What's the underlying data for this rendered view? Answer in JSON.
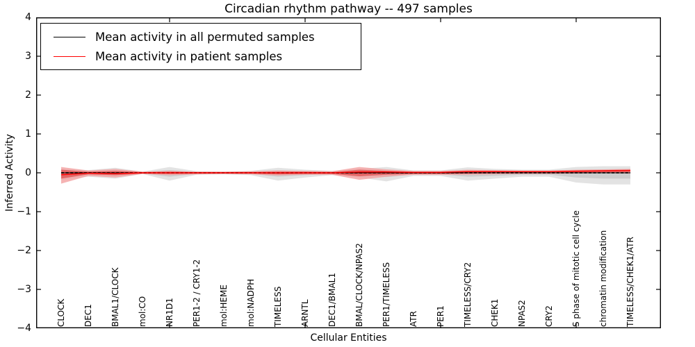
{
  "figure": {
    "title": "Circadian rhythm pathway -- 497 samples",
    "xlabel": "Cellular Entities",
    "ylabel": "Inferred Activity"
  },
  "legend": {
    "items": [
      {
        "label": "Mean activity in all permuted samples",
        "color": "#000000"
      },
      {
        "label": "Mean activity in patient samples",
        "color": "#ff0000"
      }
    ]
  },
  "chart_data": {
    "type": "line",
    "title": "Circadian rhythm pathway -- 497 samples",
    "xlabel": "Cellular Entities",
    "ylabel": "Inferred Activity",
    "ylim": [
      -4,
      4
    ],
    "yticks": [
      4,
      3,
      2,
      1,
      0,
      -1,
      -2,
      -3,
      -4
    ],
    "grid": false,
    "legend_position": "upper left",
    "x_major_tick_indices": [
      4,
      9,
      14,
      19
    ],
    "categories": [
      "CLOCK",
      "DEC1",
      "BMAL1/CLOCK",
      "mol:CO",
      "NR1D1",
      "PER1-2 / CRY1-2",
      "mol:HEME",
      "mol:NADPH",
      "TIMELESS",
      "ARNTL",
      "DEC1/BMAL1",
      "BMAL/CLOCK/NPAS2",
      "PER1/TIMELESS",
      "ATR",
      "PER1",
      "TIMELESS/CRY2",
      "CHEK1",
      "NPAS2",
      "CRY2",
      "S phase of mitotic cell cycle",
      "chromatin modification",
      "TIMELESS/CHEK1/ATR"
    ],
    "series": [
      {
        "name": "Mean activity in all permuted samples",
        "color": "#000000",
        "line_style": "dash-dot",
        "values": [
          0,
          0,
          0,
          0,
          0,
          0,
          0,
          0,
          0,
          0,
          0,
          0,
          0,
          0,
          0,
          0,
          0,
          0,
          0,
          0,
          0,
          0
        ]
      },
      {
        "name": "Mean activity in patient samples",
        "color": "#ff0000",
        "line_style": "solid",
        "values": [
          -0.05,
          -0.01,
          -0.02,
          0,
          0,
          0,
          0,
          0,
          0,
          0,
          0,
          0.02,
          0.02,
          0.01,
          0.01,
          0.03,
          0.03,
          0.03,
          0.03,
          0.04,
          0.05,
          0.06
        ]
      }
    ],
    "bands": [
      {
        "name": "permuted-envelope-outer",
        "color": "#e3e3e3",
        "opacity": 1,
        "upper": [
          0.1,
          0.07,
          0.13,
          0.03,
          0.15,
          0.04,
          0.03,
          0.05,
          0.13,
          0.08,
          0.05,
          0.1,
          0.15,
          0.06,
          0.06,
          0.14,
          0.1,
          0.08,
          0.08,
          0.15,
          0.17,
          0.17
        ],
        "lower": [
          -0.18,
          -0.1,
          -0.15,
          -0.03,
          -0.2,
          -0.05,
          -0.04,
          -0.06,
          -0.2,
          -0.12,
          -0.06,
          -0.12,
          -0.22,
          -0.08,
          -0.08,
          -0.2,
          -0.15,
          -0.1,
          -0.1,
          -0.25,
          -0.3,
          -0.3
        ]
      },
      {
        "name": "permuted-envelope-inner",
        "color": "#cdcdcd",
        "opacity": 1,
        "upper": [
          0.05,
          0.04,
          0.06,
          0.02,
          0.07,
          0.02,
          0.02,
          0.03,
          0.06,
          0.04,
          0.03,
          0.05,
          0.07,
          0.03,
          0.03,
          0.07,
          0.05,
          0.04,
          0.04,
          0.07,
          0.08,
          0.08
        ],
        "lower": [
          -0.09,
          -0.05,
          -0.08,
          -0.02,
          -0.1,
          -0.03,
          -0.02,
          -0.03,
          -0.1,
          -0.06,
          -0.03,
          -0.06,
          -0.11,
          -0.04,
          -0.04,
          -0.1,
          -0.08,
          -0.05,
          -0.05,
          -0.12,
          -0.15,
          -0.15
        ]
      },
      {
        "name": "patient-envelope-outer",
        "color": "#f2a0a0",
        "opacity": 0.8,
        "upper": [
          0.15,
          0.06,
          0.1,
          0.03,
          0.05,
          0.03,
          0.03,
          0.04,
          0.06,
          0.05,
          0.04,
          0.15,
          0.09,
          0.05,
          0.05,
          0.08,
          0.07,
          0.06,
          0.06,
          0.08,
          0.09,
          0.1
        ],
        "lower": [
          -0.28,
          -0.08,
          -0.12,
          -0.03,
          -0.06,
          -0.04,
          -0.03,
          -0.04,
          -0.07,
          -0.05,
          -0.05,
          -0.18,
          -0.1,
          -0.05,
          -0.05,
          -0.05,
          -0.04,
          -0.03,
          -0.03,
          -0.02,
          -0.01,
          -0.02
        ]
      },
      {
        "name": "patient-envelope-inner",
        "color": "#e05555",
        "opacity": 0.8,
        "upper": [
          0.08,
          0.03,
          0.05,
          0.02,
          0.03,
          0.02,
          0.02,
          0.02,
          0.03,
          0.03,
          0.02,
          0.08,
          0.05,
          0.03,
          0.03,
          0.05,
          0.05,
          0.04,
          0.04,
          0.06,
          0.07,
          0.08
        ],
        "lower": [
          -0.15,
          -0.04,
          -0.06,
          -0.02,
          -0.03,
          -0.02,
          -0.02,
          -0.02,
          -0.04,
          -0.03,
          -0.03,
          -0.09,
          -0.05,
          -0.03,
          -0.03,
          -0.02,
          -0.01,
          -0.01,
          -0.01,
          0.0,
          0.01,
          0.02
        ]
      }
    ]
  }
}
